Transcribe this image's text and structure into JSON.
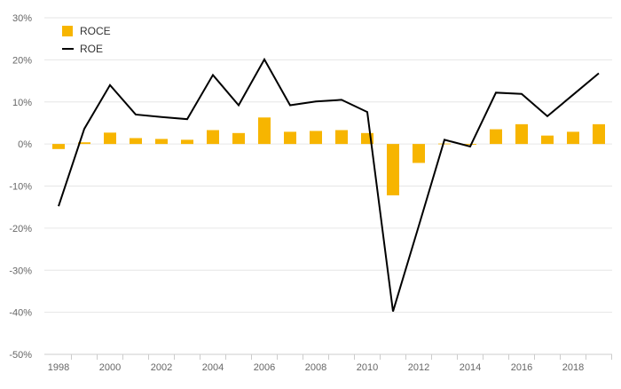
{
  "chart_data": {
    "type": "bar",
    "x": [
      1998,
      1999,
      2000,
      2001,
      2002,
      2003,
      2004,
      2005,
      2006,
      2007,
      2008,
      2009,
      2010,
      2011,
      2012,
      2013,
      2014,
      2015,
      2016,
      2017,
      2018,
      2019
    ],
    "x_tick_labels": [
      "1998",
      "2000",
      "2002",
      "2004",
      "2006",
      "2008",
      "2010",
      "2012",
      "2014",
      "2016",
      "2018"
    ],
    "x_tick_values": [
      1998,
      2000,
      2002,
      2004,
      2006,
      2008,
      2010,
      2012,
      2014,
      2016,
      2018
    ],
    "ylim": [
      -50,
      30
    ],
    "y_ticks": [
      30,
      20,
      10,
      0,
      -10,
      -20,
      -30,
      -40,
      -50
    ],
    "y_tick_labels": [
      "30%",
      "20%",
      "10%",
      "0%",
      "-10%",
      "-20%",
      "-30%",
      "-40%",
      "-50%"
    ],
    "grid": true,
    "legend_position": "top-left",
    "series": [
      {
        "name": "ROCE",
        "type": "bar",
        "color": "#F7B500",
        "values": [
          -1.2,
          0.4,
          2.7,
          1.4,
          1.2,
          1.0,
          3.3,
          2.6,
          6.3,
          2.9,
          3.1,
          3.3,
          2.6,
          -12.2,
          -4.5,
          0.1,
          -0.2,
          3.5,
          4.7,
          2.0,
          2.9,
          4.7
        ]
      },
      {
        "name": "ROE",
        "type": "line",
        "color": "#000000",
        "values": [
          -14.8,
          3.6,
          14.0,
          7.0,
          6.4,
          5.9,
          16.4,
          9.2,
          20.1,
          9.2,
          10.1,
          10.5,
          7.6,
          -39.8,
          -19.5,
          1.0,
          -0.6,
          12.2,
          11.9,
          6.6,
          11.7,
          16.8
        ]
      }
    ]
  }
}
